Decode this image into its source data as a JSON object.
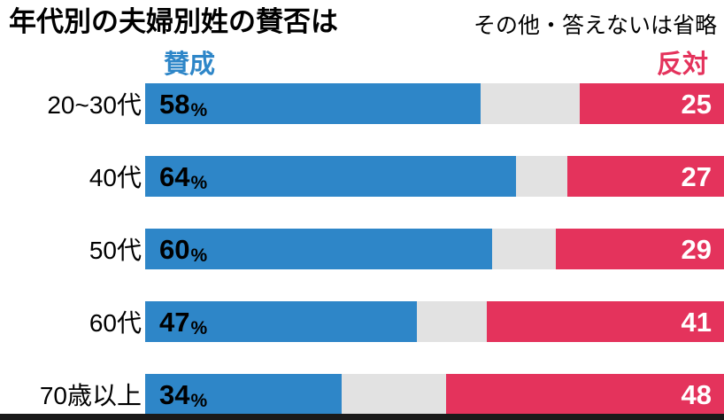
{
  "colors": {
    "approve": "#2e86c8",
    "oppose": "#e4335c",
    "track_gray": "#e2e2e2",
    "bottom_bar": "#1a1a1a"
  },
  "chart_data": {
    "type": "bar",
    "orientation": "horizontal-stacked",
    "title": "年代別の夫婦別姓の賛否は",
    "note": "その他・答えないは省略",
    "unit": "%",
    "xlim": [
      0,
      100
    ],
    "legend_position": "top",
    "categories": [
      "20~30代",
      "40代",
      "50代",
      "60代",
      "70歳以上"
    ],
    "series": [
      {
        "name": "賛成",
        "color": "#2e86c8",
        "values": [
          58,
          64,
          60,
          47,
          34
        ]
      },
      {
        "name": "反対",
        "color": "#e4335c",
        "values": [
          25,
          27,
          29,
          41,
          48
        ]
      }
    ],
    "middle_gap_meaning": "その他・答えない（省略）"
  }
}
